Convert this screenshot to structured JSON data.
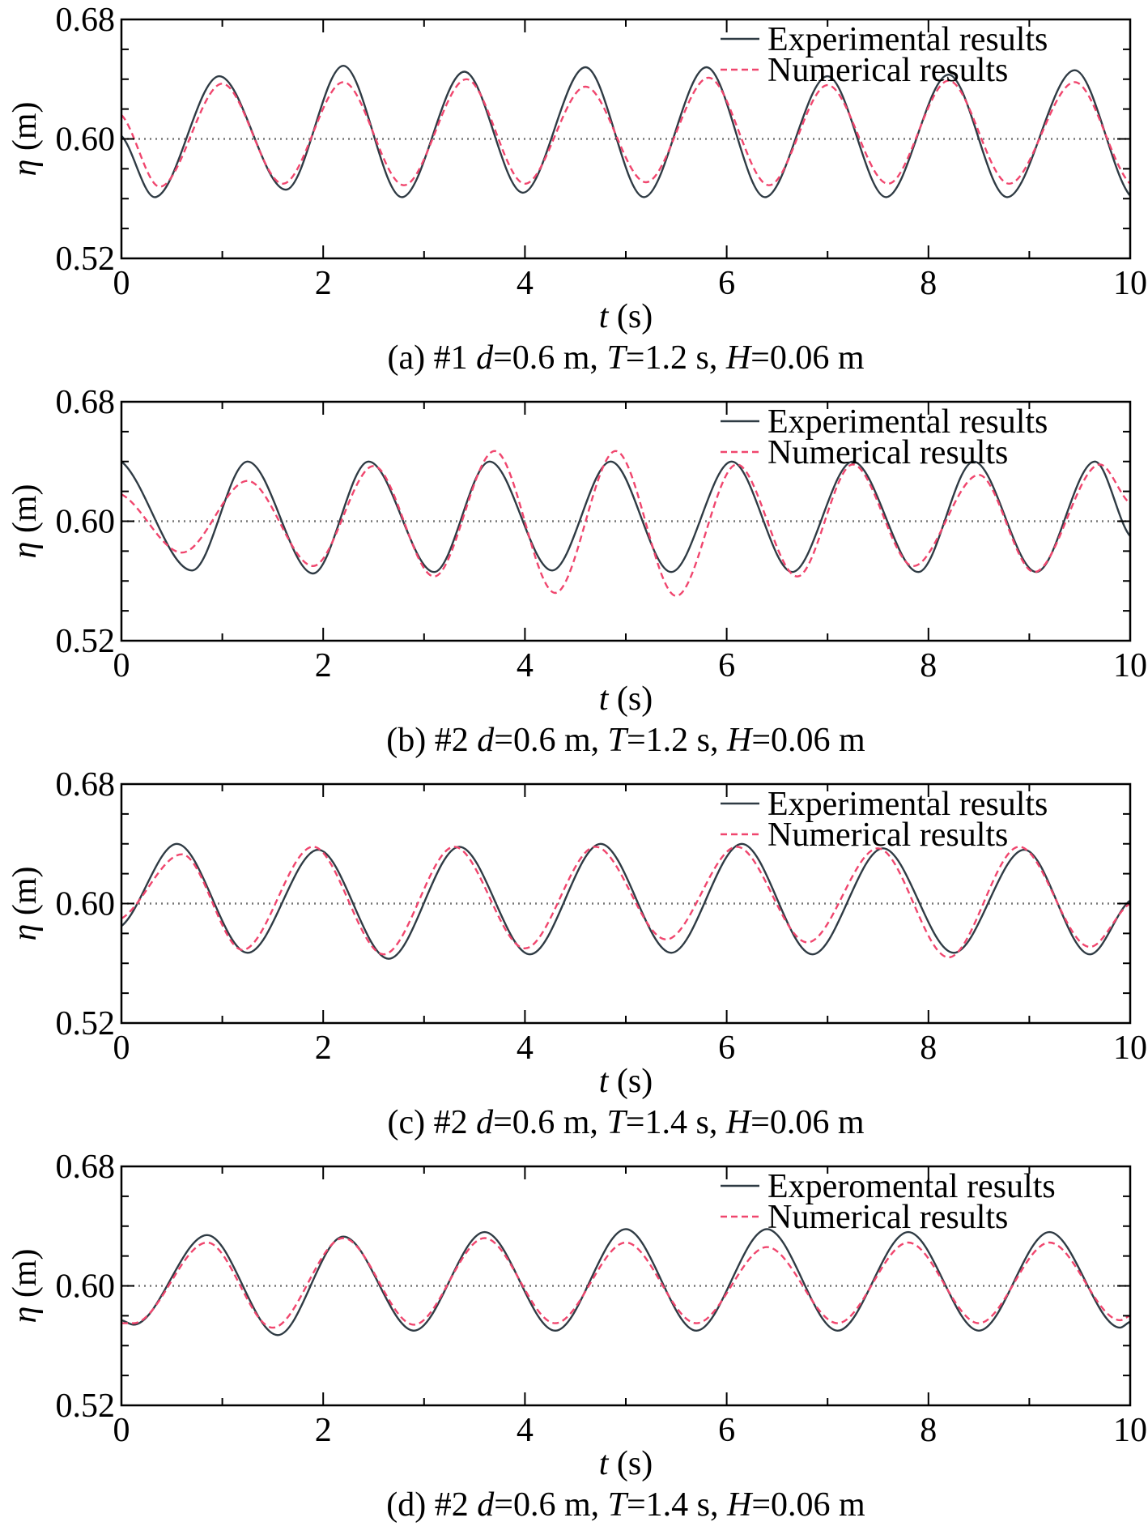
{
  "chart_data": [
    {
      "type": "line",
      "caption": [
        "(a) #1 ",
        "d",
        "=0.6 m, ",
        "T",
        "=1.2 s, ",
        "H",
        "=0.06 m"
      ],
      "xlabel": "t (s)",
      "ylabel": "η (m)",
      "xlim": [
        0,
        10
      ],
      "ylim": [
        0.52,
        0.68
      ],
      "xticks": [
        "0",
        "2",
        "4",
        "6",
        "8",
        "10"
      ],
      "yticks": [
        "0.52",
        "0.60",
        "0.68"
      ],
      "reference_line": 0.6,
      "legend_position": "top-right",
      "series": [
        {
          "name": "Experimental results",
          "style": "solid",
          "color": "#2f3b44",
          "x": [
            0,
            0.33,
            0.97,
            1.63,
            2.2,
            2.78,
            3.4,
            3.98,
            4.6,
            5.18,
            5.8,
            6.38,
            7.0,
            7.58,
            8.2,
            8.78,
            9.45,
            10
          ],
          "y": [
            0.602,
            0.561,
            0.642,
            0.566,
            0.649,
            0.561,
            0.645,
            0.564,
            0.648,
            0.561,
            0.648,
            0.561,
            0.642,
            0.561,
            0.643,
            0.561,
            0.646,
            0.562
          ]
        },
        {
          "name": "Numerical results",
          "style": "dashed",
          "color": "#f0466e",
          "x": [
            0,
            0.38,
            1.0,
            1.6,
            2.2,
            2.8,
            3.42,
            4.0,
            4.6,
            5.2,
            5.82,
            6.42,
            7.0,
            7.6,
            8.2,
            8.8,
            9.45,
            10
          ],
          "y": [
            0.616,
            0.568,
            0.637,
            0.57,
            0.638,
            0.569,
            0.64,
            0.57,
            0.635,
            0.571,
            0.641,
            0.569,
            0.636,
            0.57,
            0.639,
            0.57,
            0.638,
            0.57
          ]
        }
      ]
    },
    {
      "type": "line",
      "caption": [
        "(b) #2 ",
        "d",
        "=0.6 m, ",
        "T",
        "=1.2 s, ",
        "H",
        "=0.06 m"
      ],
      "xlabel": "t (s)",
      "ylabel": "η (m)",
      "xlim": [
        0,
        10
      ],
      "ylim": [
        0.52,
        0.68
      ],
      "xticks": [
        "0",
        "2",
        "4",
        "6",
        "8",
        "10"
      ],
      "yticks": [
        "0.52",
        "0.60",
        "0.68"
      ],
      "reference_line": 0.6,
      "legend_position": "top-right",
      "series": [
        {
          "name": "Experimental results",
          "style": "solid",
          "color": "#2f3b44",
          "x": [
            0,
            0.7,
            1.25,
            1.9,
            2.45,
            3.1,
            3.65,
            4.27,
            4.85,
            5.45,
            6.05,
            6.65,
            7.25,
            7.9,
            8.45,
            9.07,
            9.65,
            10
          ],
          "y": [
            0.64,
            0.567,
            0.64,
            0.565,
            0.64,
            0.566,
            0.64,
            0.567,
            0.64,
            0.566,
            0.64,
            0.566,
            0.64,
            0.566,
            0.64,
            0.566,
            0.64,
            0.59
          ]
        },
        {
          "name": "Numerical results",
          "style": "dashed",
          "color": "#f0466e",
          "x": [
            0,
            0.6,
            1.25,
            1.9,
            2.5,
            3.1,
            3.7,
            4.3,
            4.9,
            5.5,
            6.1,
            6.7,
            7.25,
            7.85,
            8.5,
            9.05,
            9.7,
            10
          ],
          "y": [
            0.618,
            0.579,
            0.627,
            0.57,
            0.637,
            0.563,
            0.647,
            0.552,
            0.647,
            0.55,
            0.638,
            0.563,
            0.638,
            0.57,
            0.631,
            0.566,
            0.638,
            0.612
          ]
        }
      ]
    },
    {
      "type": "line",
      "caption": [
        "(c) #2 ",
        "d",
        "=0.6 m, ",
        "T",
        "=1.4 s, ",
        "H",
        "=0.06 m"
      ],
      "xlabel": "t (s)",
      "ylabel": "η (m)",
      "xlim": [
        0,
        10
      ],
      "ylim": [
        0.52,
        0.68
      ],
      "xticks": [
        "0",
        "2",
        "4",
        "6",
        "8",
        "10"
      ],
      "yticks": [
        "0.52",
        "0.60",
        "0.68"
      ],
      "reference_line": 0.6,
      "legend_position": "top-right",
      "series": [
        {
          "name": "Experimental results",
          "style": "solid",
          "color": "#2f3b44",
          "x": [
            0,
            0.55,
            1.25,
            1.95,
            2.65,
            3.35,
            4.05,
            4.75,
            5.45,
            6.15,
            6.85,
            7.55,
            8.25,
            8.95,
            9.6,
            10
          ],
          "y": [
            0.585,
            0.64,
            0.567,
            0.636,
            0.563,
            0.638,
            0.566,
            0.64,
            0.567,
            0.64,
            0.566,
            0.637,
            0.567,
            0.636,
            0.566,
            0.602
          ]
        },
        {
          "name": "Numerical results",
          "style": "dashed",
          "color": "#f0466e",
          "x": [
            0,
            0.6,
            1.2,
            1.9,
            2.6,
            3.3,
            4.0,
            4.7,
            5.4,
            6.1,
            6.8,
            7.5,
            8.2,
            8.9,
            9.6,
            10
          ],
          "y": [
            0.59,
            0.633,
            0.569,
            0.638,
            0.566,
            0.638,
            0.57,
            0.638,
            0.576,
            0.638,
            0.574,
            0.637,
            0.564,
            0.638,
            0.571,
            0.6
          ]
        }
      ]
    },
    {
      "type": "line",
      "caption": [
        "(d) #2 ",
        "d",
        "=0.6 m, ",
        "T",
        "=1.4 s, ",
        "H",
        "=0.06 m"
      ],
      "xlabel": "t (s)",
      "ylabel": "η (m)",
      "xlim": [
        0,
        10
      ],
      "ylim": [
        0.52,
        0.68
      ],
      "xticks": [
        "0",
        "2",
        "4",
        "6",
        "8",
        "10"
      ],
      "yticks": [
        "0.52",
        "0.60",
        "0.68"
      ],
      "reference_line": 0.6,
      "legend_position": "top-right",
      "series": [
        {
          "name": "Experomental results",
          "style": "solid",
          "color": "#2f3b44",
          "x": [
            0,
            0.12,
            0.85,
            1.55,
            2.2,
            2.9,
            3.6,
            4.3,
            5.0,
            5.7,
            6.4,
            7.1,
            7.8,
            8.5,
            9.2,
            9.9,
            10
          ],
          "y": [
            0.577,
            0.574,
            0.634,
            0.567,
            0.633,
            0.57,
            0.636,
            0.57,
            0.638,
            0.57,
            0.638,
            0.57,
            0.636,
            0.57,
            0.636,
            0.572,
            0.576
          ]
        },
        {
          "name": "Numerical results",
          "style": "dashed",
          "color": "#f0466e",
          "x": [
            0,
            0.12,
            0.85,
            1.5,
            2.2,
            2.9,
            3.6,
            4.3,
            5.0,
            5.7,
            6.4,
            7.1,
            7.8,
            8.5,
            9.2,
            9.9,
            10
          ],
          "y": [
            0.575,
            0.575,
            0.629,
            0.572,
            0.632,
            0.574,
            0.632,
            0.575,
            0.629,
            0.575,
            0.626,
            0.575,
            0.629,
            0.575,
            0.629,
            0.577,
            0.58
          ]
        }
      ]
    }
  ]
}
